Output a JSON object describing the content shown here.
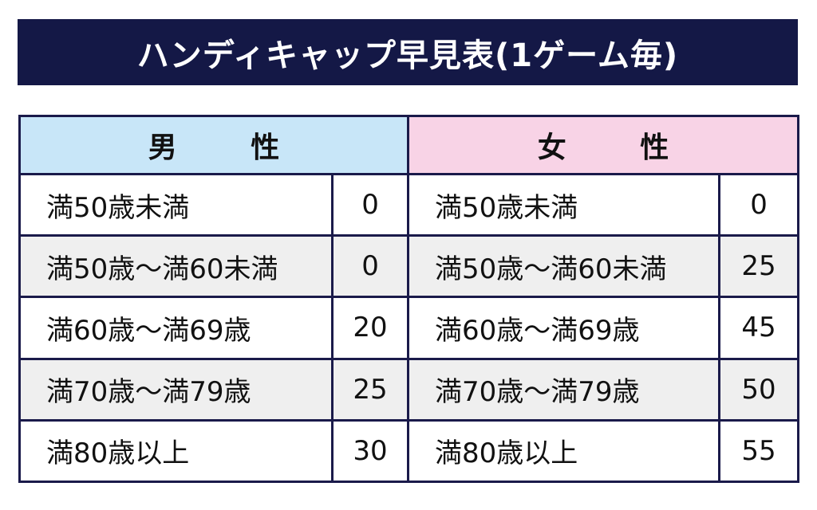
{
  "title": "ハンディキャップ早見表(1ゲーム毎)",
  "colors": {
    "title_bg": "#141846",
    "male_header": "#c8e6f8",
    "female_header": "#f8d3e6",
    "border": "#1a1a4a",
    "shaded_row": "#efefef"
  },
  "headers": {
    "male": "男 性",
    "female": "女 性"
  },
  "rows": [
    {
      "male_label": "満50歳未満",
      "male_value": "0",
      "female_label": "満50歳未満",
      "female_value": "0"
    },
    {
      "male_label": "満50歳～満60未満",
      "male_value": "0",
      "female_label": "満50歳～満60未満",
      "female_value": "25"
    },
    {
      "male_label": "満60歳～満69歳",
      "male_value": "20",
      "female_label": "満60歳～満69歳",
      "female_value": "45"
    },
    {
      "male_label": "満70歳～満79歳",
      "male_value": "25",
      "female_label": "満70歳～満79歳",
      "female_value": "50"
    },
    {
      "male_label": "満80歳以上",
      "male_value": "30",
      "female_label": "満80歳以上",
      "female_value": "55"
    }
  ]
}
